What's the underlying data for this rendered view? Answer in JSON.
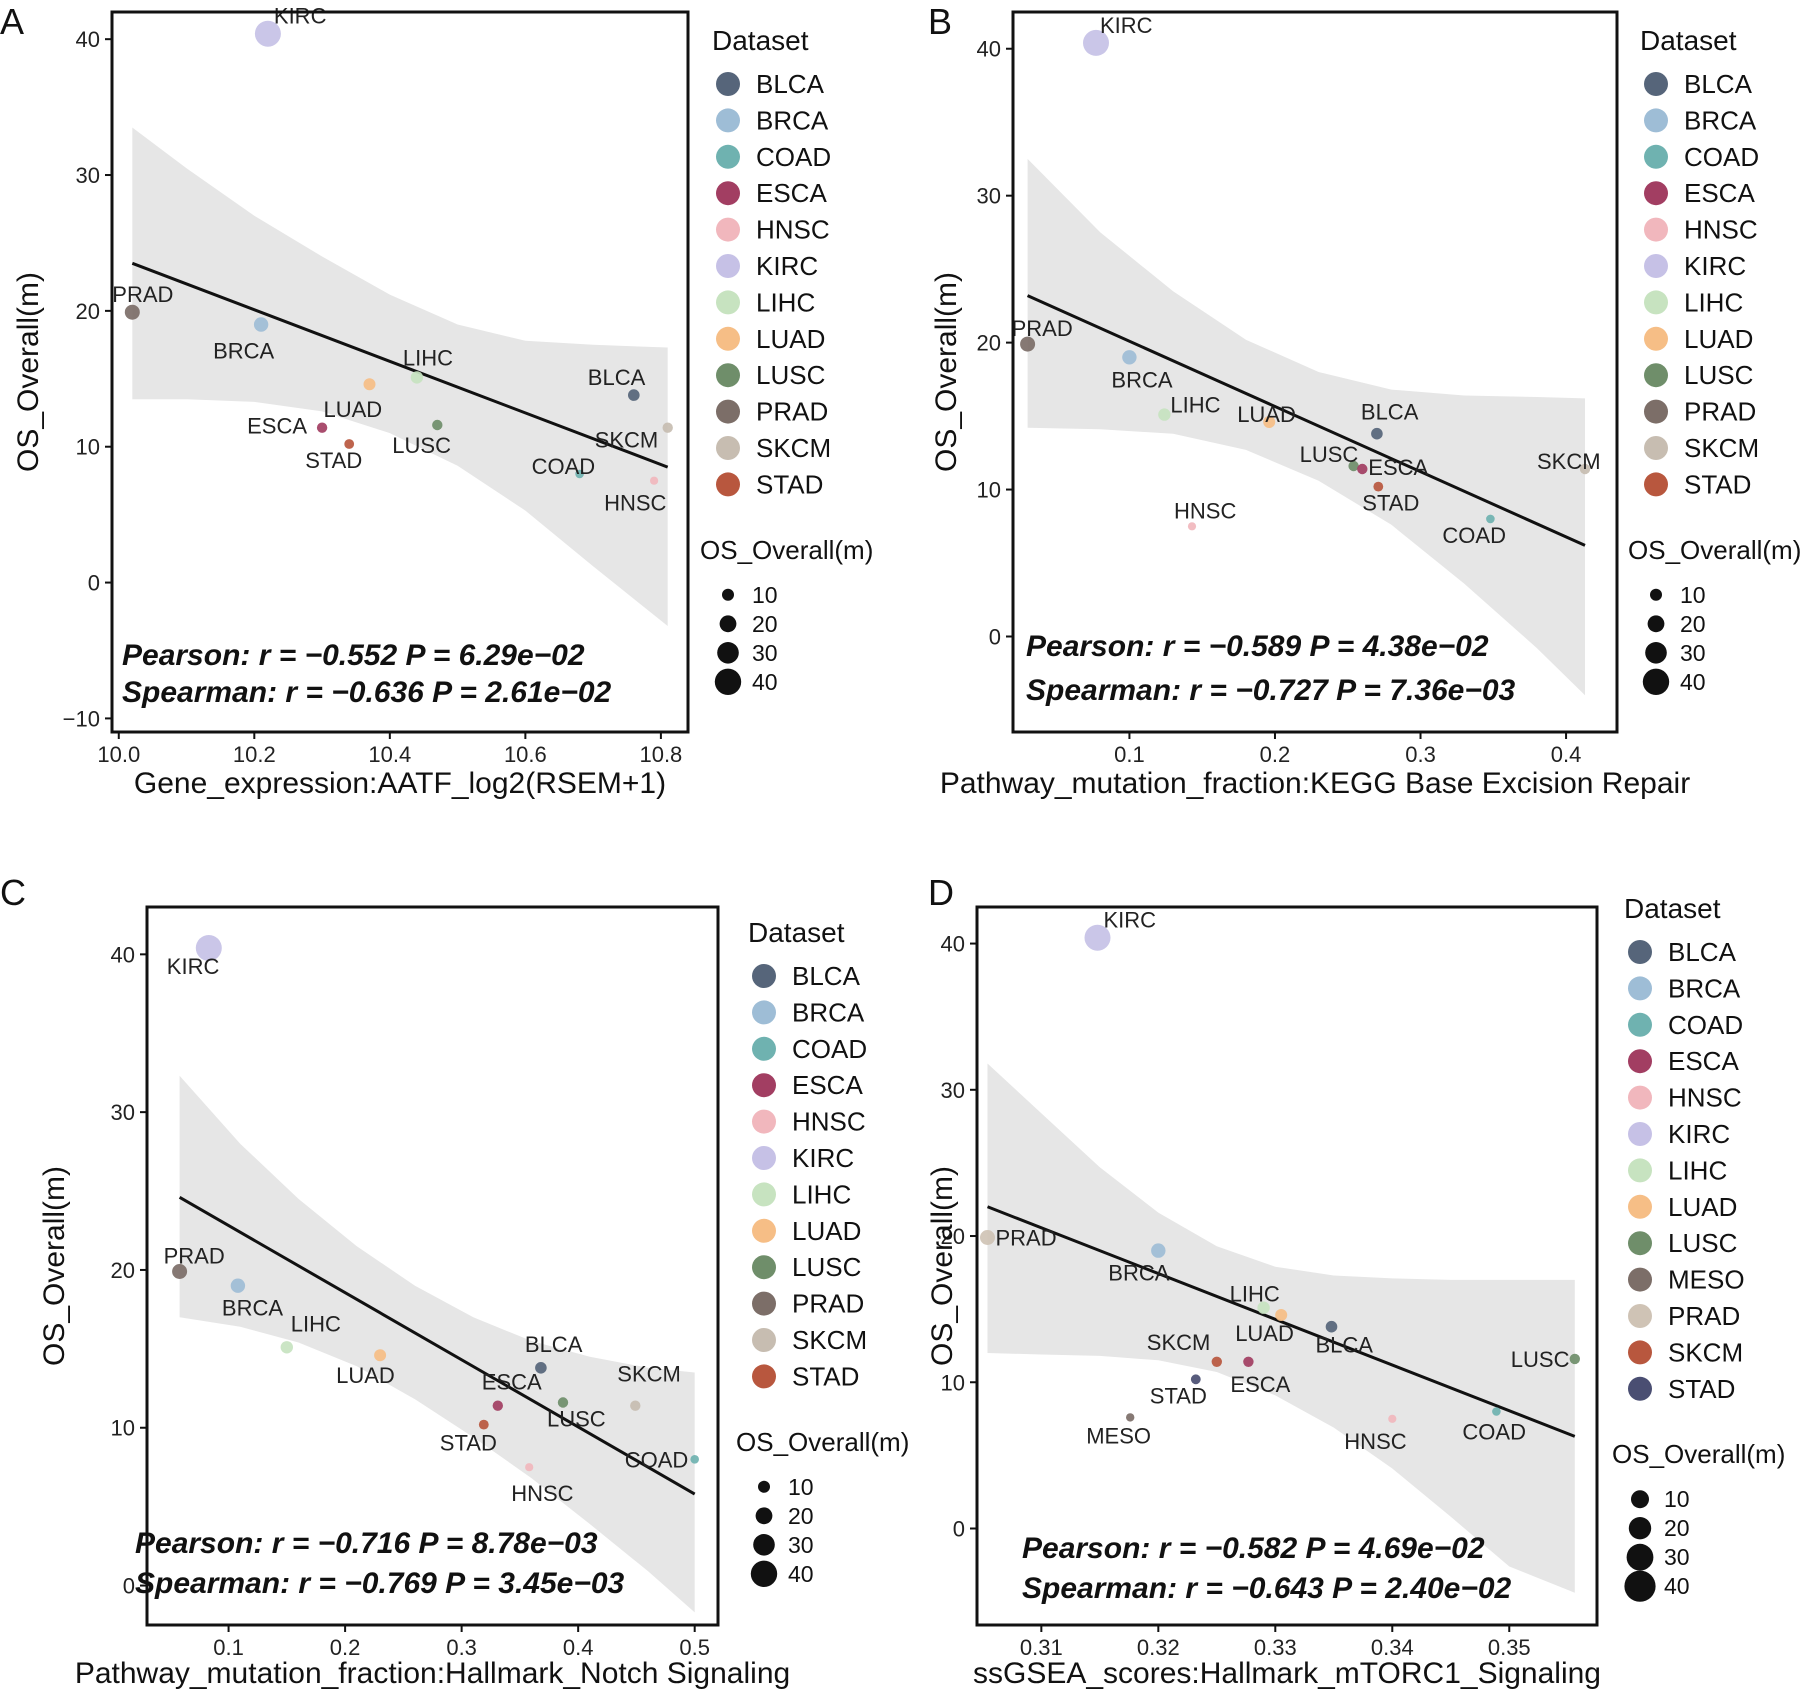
{
  "figure": {
    "panels": [
      "A",
      "B",
      "C",
      "D"
    ]
  },
  "chart_data": [
    {
      "panel": "A",
      "type": "scatter",
      "xlabel": "Gene_expression:AATF_log2(RSEM+1)",
      "ylabel": "OS_Overall(m)",
      "xlim": [
        9.99,
        10.84
      ],
      "ylim": [
        -11,
        42
      ],
      "xticks": [
        10.0,
        10.2,
        10.4,
        10.6,
        10.8
      ],
      "xtick_labels": [
        "10.0",
        "10.2",
        "10.4",
        "10.6",
        "10.8"
      ],
      "yticks": [
        -10,
        0,
        10,
        20,
        30,
        40
      ],
      "ytick_labels": [
        "−10",
        "0",
        "10",
        "20",
        "30",
        "40"
      ],
      "points": [
        {
          "label": "KIRC",
          "x": 10.22,
          "y": 40.4
        },
        {
          "label": "PRAD",
          "x": 10.02,
          "y": 19.9
        },
        {
          "label": "BRCA",
          "x": 10.21,
          "y": 19.0
        },
        {
          "label": "LIHC",
          "x": 10.44,
          "y": 15.1
        },
        {
          "label": "LUAD",
          "x": 10.37,
          "y": 14.6
        },
        {
          "label": "BLCA",
          "x": 10.76,
          "y": 13.8
        },
        {
          "label": "SKCM",
          "x": 10.81,
          "y": 11.4
        },
        {
          "label": "ESCA",
          "x": 10.3,
          "y": 11.4
        },
        {
          "label": "LUSC",
          "x": 10.47,
          "y": 11.6
        },
        {
          "label": "STAD",
          "x": 10.34,
          "y": 10.2
        },
        {
          "label": "COAD",
          "x": 10.68,
          "y": 8.0
        },
        {
          "label": "HNSC",
          "x": 10.79,
          "y": 7.5
        }
      ],
      "regression": {
        "x": [
          10.02,
          10.81
        ],
        "y": [
          23.5,
          8.5
        ]
      },
      "confidence_band": {
        "x": [
          10.02,
          10.1,
          10.2,
          10.3,
          10.4,
          10.5,
          10.6,
          10.7,
          10.81
        ],
        "upper": [
          33.5,
          30.5,
          27.0,
          24.0,
          21.2,
          19.0,
          17.8,
          17.5,
          17.3
        ],
        "lower": [
          13.5,
          13.5,
          13.3,
          12.6,
          11.0,
          8.6,
          5.3,
          1.2,
          -3.2
        ]
      },
      "stats": [
        "Pearson: r = −0.552 P = 6.29e−02",
        "Spearman: r = −0.636 P = 2.61e−02"
      ],
      "legend_title": "Dataset",
      "legend": [
        "BLCA",
        "BRCA",
        "COAD",
        "ESCA",
        "HNSC",
        "KIRC",
        "LIHC",
        "LUAD",
        "LUSC",
        "PRAD",
        "SKCM",
        "STAD"
      ],
      "size_legend_title": "OS_Overall(m)",
      "size_legend": [
        "10",
        "20",
        "30",
        "40"
      ]
    },
    {
      "panel": "B",
      "type": "scatter",
      "xlabel": "Pathway_mutation_fraction:KEGG Base Excision Repair",
      "ylabel": "OS_Overall(m)",
      "xlim": [
        0.02,
        0.435
      ],
      "ylim": [
        -6.5,
        42.5
      ],
      "xticks": [
        0.1,
        0.2,
        0.3,
        0.4
      ],
      "xtick_labels": [
        "0.1",
        "0.2",
        "0.3",
        "0.4"
      ],
      "yticks": [
        0,
        10,
        20,
        30,
        40
      ],
      "ytick_labels": [
        "0",
        "10",
        "20",
        "30",
        "40"
      ],
      "points": [
        {
          "label": "KIRC",
          "x": 0.077,
          "y": 40.4
        },
        {
          "label": "PRAD",
          "x": 0.03,
          "y": 19.9
        },
        {
          "label": "BRCA",
          "x": 0.1,
          "y": 19.0
        },
        {
          "label": "LIHC",
          "x": 0.124,
          "y": 15.1
        },
        {
          "label": "LUAD",
          "x": 0.196,
          "y": 14.6
        },
        {
          "label": "BLCA",
          "x": 0.27,
          "y": 13.8
        },
        {
          "label": "LUSC",
          "x": 0.254,
          "y": 11.6
        },
        {
          "label": "ESCA",
          "x": 0.26,
          "y": 11.4
        },
        {
          "label": "STAD",
          "x": 0.271,
          "y": 10.2
        },
        {
          "label": "SKCM",
          "x": 0.413,
          "y": 11.4
        },
        {
          "label": "COAD",
          "x": 0.348,
          "y": 8.0
        },
        {
          "label": "HNSC",
          "x": 0.143,
          "y": 7.5
        }
      ],
      "regression": {
        "x": [
          0.03,
          0.413
        ],
        "y": [
          23.2,
          6.2
        ]
      },
      "confidence_band": {
        "x": [
          0.03,
          0.08,
          0.13,
          0.18,
          0.23,
          0.28,
          0.33,
          0.38,
          0.413
        ],
        "upper": [
          32.5,
          27.5,
          23.5,
          20.2,
          18.0,
          16.8,
          16.4,
          16.3,
          16.2
        ],
        "lower": [
          14.2,
          14.1,
          13.8,
          12.7,
          10.6,
          7.6,
          3.6,
          -0.8,
          -4.0
        ]
      },
      "stats": [
        "Pearson: r = −0.589 P = 4.38e−02",
        "Spearman: r = −0.727 P = 7.36e−03"
      ],
      "legend_title": "Dataset",
      "legend": [
        "BLCA",
        "BRCA",
        "COAD",
        "ESCA",
        "HNSC",
        "KIRC",
        "LIHC",
        "LUAD",
        "LUSC",
        "PRAD",
        "SKCM",
        "STAD"
      ],
      "size_legend_title": "OS_Overall(m)",
      "size_legend": [
        "10",
        "20",
        "30",
        "40"
      ]
    },
    {
      "panel": "C",
      "type": "scatter",
      "xlabel": "Pathway_mutation_fraction:Hallmark_Notch Signaling",
      "ylabel": "OS_Overall(m)",
      "xlim": [
        0.03,
        0.52
      ],
      "ylim": [
        -2.5,
        43
      ],
      "xticks": [
        0.1,
        0.2,
        0.3,
        0.4,
        0.5
      ],
      "xtick_labels": [
        "0.1",
        "0.2",
        "0.3",
        "0.4",
        "0.5"
      ],
      "yticks": [
        0,
        10,
        20,
        30,
        40
      ],
      "ytick_labels": [
        "0",
        "10",
        "20",
        "30",
        "40"
      ],
      "points": [
        {
          "label": "KIRC",
          "x": 0.083,
          "y": 40.4
        },
        {
          "label": "PRAD",
          "x": 0.058,
          "y": 19.9
        },
        {
          "label": "BRCA",
          "x": 0.108,
          "y": 19.0
        },
        {
          "label": "LIHC",
          "x": 0.15,
          "y": 15.1
        },
        {
          "label": "LUAD",
          "x": 0.23,
          "y": 14.6
        },
        {
          "label": "BLCA",
          "x": 0.368,
          "y": 13.8
        },
        {
          "label": "SKCM",
          "x": 0.449,
          "y": 11.4
        },
        {
          "label": "ESCA",
          "x": 0.331,
          "y": 11.4
        },
        {
          "label": "LUSC",
          "x": 0.387,
          "y": 11.6
        },
        {
          "label": "STAD",
          "x": 0.319,
          "y": 10.2
        },
        {
          "label": "COAD",
          "x": 0.5,
          "y": 8.0
        },
        {
          "label": "HNSC",
          "x": 0.358,
          "y": 7.5
        }
      ],
      "regression": {
        "x": [
          0.058,
          0.5
        ],
        "y": [
          24.6,
          5.8
        ]
      },
      "confidence_band": {
        "x": [
          0.058,
          0.11,
          0.16,
          0.21,
          0.26,
          0.31,
          0.36,
          0.41,
          0.46,
          0.5
        ],
        "upper": [
          32.3,
          28.0,
          24.5,
          21.5,
          19.0,
          17.0,
          15.5,
          14.5,
          13.8,
          13.5
        ],
        "lower": [
          17.0,
          16.4,
          15.4,
          13.9,
          11.8,
          9.4,
          6.8,
          3.9,
          0.9,
          -1.7
        ]
      },
      "stats": [
        "Pearson: r = −0.716 P = 8.78e−03",
        "Spearman: r = −0.769 P = 3.45e−03"
      ],
      "legend_title": "Dataset",
      "legend": [
        "BLCA",
        "BRCA",
        "COAD",
        "ESCA",
        "HNSC",
        "KIRC",
        "LIHC",
        "LUAD",
        "LUSC",
        "PRAD",
        "SKCM",
        "STAD"
      ],
      "size_legend_title": "OS_Overall(m)",
      "size_legend": [
        "10",
        "20",
        "30",
        "40"
      ]
    },
    {
      "panel": "D",
      "type": "scatter",
      "xlabel": "ssGSEA_scores:Hallmark_mTORC1_Signaling",
      "ylabel": "OS_Overall(m)",
      "xlim": [
        0.3045,
        0.3575
      ],
      "ylim": [
        -6.6,
        42.5
      ],
      "xticks": [
        0.31,
        0.32,
        0.33,
        0.34,
        0.35
      ],
      "xtick_labels": [
        "0.31",
        "0.32",
        "0.33",
        "0.34",
        "0.35"
      ],
      "yticks": [
        0,
        10,
        20,
        30,
        40
      ],
      "ytick_labels": [
        "0",
        "10",
        "20",
        "30",
        "40"
      ],
      "points": [
        {
          "label": "KIRC",
          "x": 0.3148,
          "y": 40.4
        },
        {
          "label": "PRAD",
          "x": 0.3054,
          "y": 19.9
        },
        {
          "label": "BRCA",
          "x": 0.32,
          "y": 19.0
        },
        {
          "label": "LIHC",
          "x": 0.329,
          "y": 15.1
        },
        {
          "label": "LUAD",
          "x": 0.3305,
          "y": 14.6
        },
        {
          "label": "BLCA",
          "x": 0.3348,
          "y": 13.8
        },
        {
          "label": "SKCM",
          "x": 0.325,
          "y": 11.4
        },
        {
          "label": "ESCA",
          "x": 0.3277,
          "y": 11.4
        },
        {
          "label": "LUSC",
          "x": 0.3556,
          "y": 11.6
        },
        {
          "label": "STAD",
          "x": 0.3232,
          "y": 10.2
        },
        {
          "label": "MESO",
          "x": 0.3176,
          "y": 7.6
        },
        {
          "label": "HNSC",
          "x": 0.34,
          "y": 7.5
        },
        {
          "label": "COAD",
          "x": 0.3489,
          "y": 8.0
        }
      ],
      "regression": {
        "x": [
          0.3054,
          0.3556
        ],
        "y": [
          22.0,
          6.3
        ]
      },
      "confidence_band": {
        "x": [
          0.3054,
          0.31,
          0.315,
          0.32,
          0.325,
          0.33,
          0.335,
          0.34,
          0.345,
          0.35,
          0.3556
        ],
        "upper": [
          31.8,
          28.4,
          24.7,
          21.6,
          19.3,
          17.9,
          17.3,
          17.1,
          17.0,
          17.0,
          17.0
        ],
        "lower": [
          12.0,
          11.9,
          11.8,
          11.5,
          10.7,
          9.1,
          6.9,
          4.1,
          0.8,
          -2.6,
          -4.4
        ]
      },
      "stats": [
        "Pearson: r = −0.582 P = 4.69e−02",
        "Spearman: r = −0.643 P = 2.40e−02"
      ],
      "legend_title": "Dataset",
      "legend": [
        "BLCA",
        "BRCA",
        "COAD",
        "ESCA",
        "HNSC",
        "KIRC",
        "LIHC",
        "LUAD",
        "LUSC",
        "MESO",
        "PRAD",
        "SKCM",
        "STAD"
      ],
      "size_legend_title": "OS_Overall(m)",
      "size_legend": [
        "10",
        "20",
        "30",
        "40"
      ]
    }
  ],
  "colors": {
    "BLCA": "#56657a",
    "BRCA": "#9ebdd6",
    "COAD": "#6fb2b0",
    "ESCA": "#a23e62",
    "HNSC": "#f1b7bd",
    "KIRC": "#c6c1e6",
    "LIHC": "#c7e3c0",
    "LUAD": "#f6be86",
    "LUSC": "#6f8e6a",
    "MESO": "#7c6e68",
    "PRAD": "#7c6e68",
    "SKCM": "#c7bdb1",
    "STAD": "#b8573e",
    "D_PRAD": "#cfc3b5",
    "D_SKCM": "#b8573e",
    "D_STAD": "#4a4e72",
    "band": "#e6e6e6",
    "line": "#111111"
  }
}
